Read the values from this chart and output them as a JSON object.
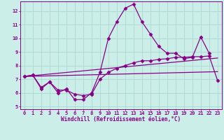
{
  "xlabel": "Windchill (Refroidissement éolien,°C)",
  "background_color": "#cceee8",
  "grid_color": "#aad8d0",
  "line_color": "#880088",
  "spine_color": "#880088",
  "xlim": [
    -0.5,
    23.5
  ],
  "ylim": [
    4.8,
    12.7
  ],
  "yticks": [
    5,
    6,
    7,
    8,
    9,
    10,
    11,
    12
  ],
  "xticks": [
    0,
    1,
    2,
    3,
    4,
    5,
    6,
    7,
    8,
    9,
    10,
    11,
    12,
    13,
    14,
    15,
    16,
    17,
    18,
    19,
    20,
    21,
    22,
    23
  ],
  "tick_fontsize": 5.0,
  "xlabel_fontsize": 5.5,
  "series": [
    {
      "x": [
        0,
        1,
        2,
        3,
        4,
        5,
        6,
        7,
        8,
        9,
        10,
        11,
        12,
        13,
        14,
        15,
        16,
        17,
        18,
        19,
        20,
        21,
        22
      ],
      "y": [
        7.2,
        7.3,
        6.3,
        6.8,
        6.0,
        6.3,
        5.5,
        5.5,
        6.0,
        7.5,
        10.0,
        11.2,
        12.2,
        12.5,
        11.2,
        10.3,
        9.4,
        8.9,
        8.9,
        8.5,
        8.6,
        10.1,
        8.9
      ],
      "marker": "D",
      "markersize": 2.5,
      "linewidth": 0.9
    },
    {
      "x": [
        0,
        1,
        2,
        3,
        4,
        5,
        6,
        7,
        8,
        9,
        10,
        11,
        12,
        13,
        14,
        15,
        16,
        17,
        18,
        19,
        20,
        21,
        22,
        23
      ],
      "y": [
        7.2,
        7.3,
        6.4,
        6.8,
        6.2,
        6.2,
        5.9,
        5.8,
        5.9,
        7.0,
        7.5,
        7.8,
        8.0,
        8.2,
        8.35,
        8.35,
        8.45,
        8.5,
        8.6,
        8.6,
        8.65,
        8.65,
        8.7,
        6.9
      ],
      "marker": "D",
      "markersize": 2.5,
      "linewidth": 0.9
    },
    {
      "x": [
        0,
        23
      ],
      "y": [
        7.2,
        7.55
      ],
      "marker": null,
      "markersize": 0,
      "linewidth": 0.9
    },
    {
      "x": [
        0,
        23
      ],
      "y": [
        7.2,
        8.55
      ],
      "marker": null,
      "markersize": 0,
      "linewidth": 0.9
    }
  ]
}
